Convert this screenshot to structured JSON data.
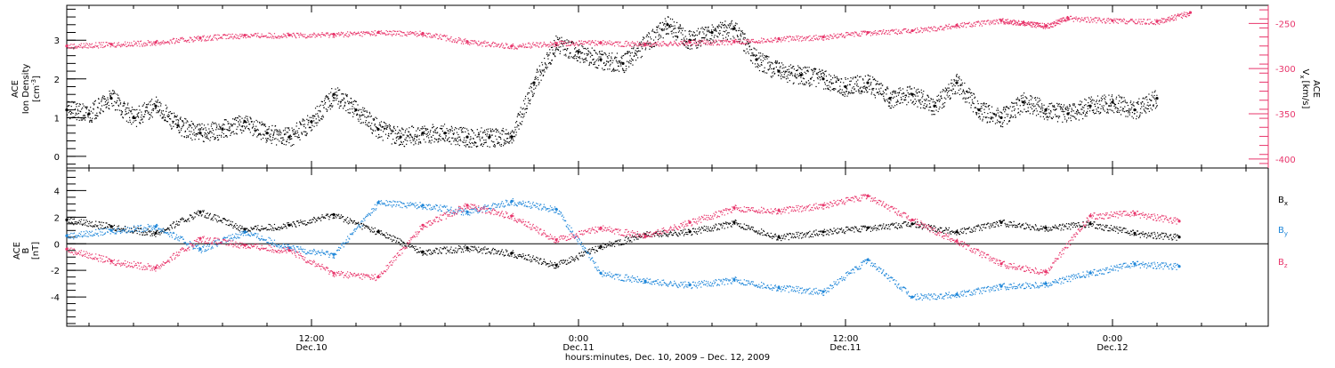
{
  "colors": {
    "black": "#000000",
    "pink": "#e8356b",
    "blue": "#1e86d9",
    "axis": "#000000"
  },
  "x_axis": {
    "title": "hours:minutes, Dec. 10, 2009 – Dec. 12, 2009",
    "ticks": [
      {
        "hour": 12,
        "time": "12:00",
        "date": "Dec.10"
      },
      {
        "hour": 24,
        "time": "0:00",
        "date": "Dec.11"
      },
      {
        "hour": 36,
        "time": "12:00",
        "date": "Dec.11"
      },
      {
        "hour": 48,
        "time": "0:00",
        "date": "Dec.12"
      }
    ]
  },
  "top_panel": {
    "ylabel_lines": [
      "ACE",
      "Ion Density"
    ],
    "ylabel_unit": "[cm",
    "ylabel_unit_sup": "-3",
    "ylabel_unit_end": "]",
    "right_label_main": "V",
    "right_label_sub": "x",
    "right_label_ace": "ACE",
    "right_label_unit": "[km/s]"
  },
  "bottom_panel": {
    "ylabel_lines": [
      "ACE",
      "B"
    ],
    "ylabel_unit": "[nT]",
    "legend": [
      {
        "main": "B",
        "sub": "x",
        "color": "#000000"
      },
      {
        "main": "B",
        "sub": "y",
        "color": "#1e86d9"
      },
      {
        "main": "B",
        "sub": "z",
        "color": "#e8356b"
      }
    ]
  },
  "chart_data": [
    {
      "type": "scatter",
      "panel": "top",
      "x_unit": "hours since Dec. 10, 2009 00:00 UT",
      "x_range": [
        1,
        55
      ],
      "y_left_range": [
        -0.3,
        3.9
      ],
      "y_left_ticks": [
        0,
        1,
        2,
        3
      ],
      "y_right_range": [
        -410,
        -230
      ],
      "y_right_ticks": [
        -400,
        -350,
        -300,
        -250
      ],
      "series": [
        {
          "name": "Ion Density",
          "axis": "left",
          "color": "#000000",
          "x": [
            1,
            2,
            3,
            4,
            5,
            6,
            7,
            8,
            9,
            10,
            11,
            12,
            13,
            14,
            15,
            16,
            17,
            18,
            19,
            20,
            21,
            22,
            23,
            24,
            25,
            26,
            27,
            28,
            29,
            30,
            31,
            32,
            33,
            34,
            35,
            36,
            37,
            38,
            39,
            40,
            41,
            42,
            43,
            44,
            45,
            46,
            47,
            48,
            49,
            50
          ],
          "y": [
            1.2,
            1.1,
            1.5,
            1.0,
            1.3,
            0.8,
            0.6,
            0.7,
            0.9,
            0.6,
            0.5,
            0.9,
            1.6,
            1.2,
            0.7,
            0.5,
            0.6,
            0.6,
            0.5,
            0.5,
            0.5,
            1.9,
            2.9,
            2.7,
            2.5,
            2.4,
            2.9,
            3.4,
            3.0,
            3.2,
            3.3,
            2.5,
            2.2,
            2.1,
            2.0,
            1.8,
            1.9,
            1.5,
            1.6,
            1.3,
            1.9,
            1.2,
            1.0,
            1.4,
            1.2,
            1.1,
            1.3,
            1.4,
            1.2,
            1.5
          ]
        },
        {
          "name": "Vx",
          "axis": "right",
          "color": "#e8356b",
          "x": [
            1,
            3,
            5,
            7,
            9,
            11,
            13,
            15,
            17,
            19,
            21,
            23,
            25,
            27,
            29,
            31,
            33,
            35,
            37,
            39,
            41,
            43,
            44,
            45,
            46,
            48,
            50,
            51.5
          ],
          "y": [
            -275,
            -273,
            -271,
            -266,
            -263,
            -263,
            -262,
            -260,
            -261,
            -270,
            -275,
            -272,
            -271,
            -273,
            -271,
            -270,
            -267,
            -265,
            -260,
            -258,
            -252,
            -247,
            -249,
            -253,
            -244,
            -247,
            -248,
            -238
          ]
        }
      ]
    },
    {
      "type": "scatter",
      "panel": "bottom",
      "x_unit": "hours since Dec. 10, 2009 00:00 UT",
      "x_range": [
        1,
        55
      ],
      "y_range": [
        -6.2,
        5.7
      ],
      "y_ticks": [
        -4,
        -2,
        0,
        2,
        4
      ],
      "series": [
        {
          "name": "Bx",
          "color": "#000000",
          "x": [
            1,
            3,
            5,
            7,
            9,
            11,
            13,
            15,
            17,
            19,
            21,
            23,
            25,
            27,
            29,
            31,
            33,
            35,
            37,
            39,
            41,
            43,
            45,
            47,
            49,
            51
          ],
          "y": [
            1.8,
            1.3,
            0.8,
            2.4,
            1.1,
            1.4,
            2.2,
            0.9,
            -0.6,
            -0.3,
            -0.7,
            -1.6,
            -0.2,
            0.7,
            0.9,
            1.6,
            0.5,
            0.9,
            1.2,
            1.5,
            0.9,
            1.6,
            1.2,
            1.5,
            0.8,
            0.5
          ]
        },
        {
          "name": "By",
          "color": "#1e86d9",
          "x": [
            1,
            3,
            5,
            7,
            9,
            11,
            13,
            15,
            17,
            19,
            21,
            23,
            25,
            27,
            29,
            31,
            33,
            35,
            37,
            39,
            41,
            43,
            45,
            47,
            49,
            51
          ],
          "y": [
            0.6,
            1.0,
            1.3,
            -0.4,
            0.9,
            -0.3,
            -0.8,
            3.1,
            2.9,
            2.4,
            3.2,
            2.6,
            -2.2,
            -2.8,
            -3.1,
            -2.7,
            -3.3,
            -3.6,
            -1.2,
            -4.0,
            -3.8,
            -3.2,
            -3.0,
            -2.2,
            -1.5,
            -1.7
          ]
        },
        {
          "name": "Bz",
          "color": "#e8356b",
          "x": [
            1,
            3,
            5,
            7,
            9,
            11,
            13,
            15,
            17,
            19,
            21,
            23,
            25,
            27,
            29,
            31,
            33,
            35,
            37,
            39,
            41,
            43,
            45,
            47,
            49,
            51
          ],
          "y": [
            -0.4,
            -1.3,
            -1.8,
            0.4,
            -0.1,
            -0.5,
            -2.2,
            -2.5,
            1.4,
            2.9,
            2.1,
            0.3,
            1.2,
            0.6,
            1.6,
            2.7,
            2.5,
            2.9,
            3.6,
            1.8,
            0.2,
            -1.5,
            -2.1,
            2.1,
            2.3,
            1.7
          ]
        }
      ]
    }
  ]
}
